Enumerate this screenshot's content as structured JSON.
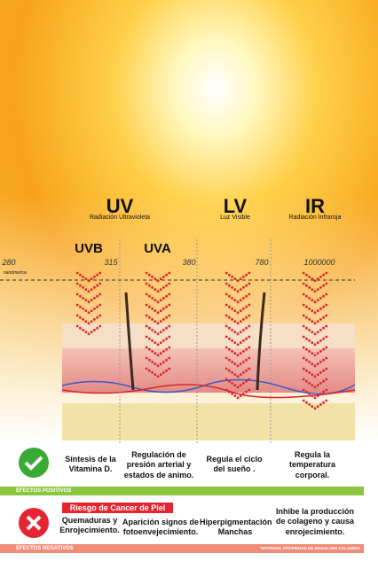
{
  "bands": [
    {
      "code": "UV",
      "label": "Radiación Ultravioleta"
    },
    {
      "code": "LV",
      "label": "Luz Visible"
    },
    {
      "code": "IR",
      "label": "Radiación Infraroja"
    }
  ],
  "subbands": [
    "UVB",
    "UVA"
  ],
  "wavelengths": [
    "280",
    "315",
    "380",
    "780",
    "1000000"
  ],
  "unit": "nanómetros",
  "positive": {
    "label": "EFECTOS POSITIVOS",
    "items": [
      "Síntesis de la Vitamina D.",
      "Regulación de presión arterial y estados de animo.",
      "Regula el ciclo del sueño .",
      "Regula la temperatura corporal."
    ]
  },
  "negative": {
    "label": "EFECTOS NEGATIVOS",
    "badge": "Riesgo de Cancer de Piel",
    "items": [
      "Quemaduras y Enrojecimiento.",
      "Aparición signos de fotoenvejecimiento.",
      "Hiperpigmentación Manchas",
      "Inhibe la producción de colageno y causa enrojecimiento."
    ]
  },
  "credit": "*MATERIAL PROPIEDAD DE MEGALABS COLOMBIA"
}
